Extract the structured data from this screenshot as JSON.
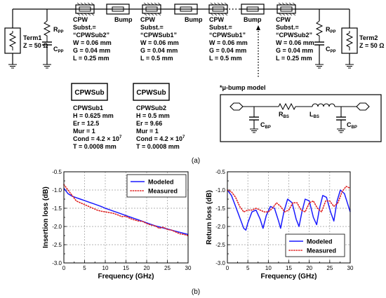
{
  "schematic": {
    "term1": {
      "name": "Term1",
      "z": "Z = 50 Ω"
    },
    "term2": {
      "name": "Term2",
      "z": "Z = 50 Ω"
    },
    "rpp": {
      "main": "R",
      "sub": "PP"
    },
    "cpp": {
      "main": "C",
      "sub": "PP"
    },
    "cpw_label": "CPW",
    "bump_label": "Bump",
    "cpw_blocks": [
      {
        "line1": "Subst.=",
        "line2": "“CPWSub2”",
        "line3": "W = 0.06 mm",
        "line4": "G = 0.04 mm",
        "line5": "L = 0.25 mm"
      },
      {
        "line1": "Subst.=",
        "line2": "“CPWSub1”",
        "line3": "W = 0.06 mm",
        "line4": "G = 0.04 mm",
        "line5": "L = 0.5 mm"
      },
      {
        "line1": "Subst.=",
        "line2": "“CPWSub1”",
        "line3": "W = 0.06 mm",
        "line4": "G = 0.04 mm",
        "line5": "L = 0.5 mm"
      },
      {
        "line1": "Subst.=",
        "line2": "“CPWSub2”",
        "line3": "W = 0.06 mm",
        "line4": "G = 0.04 mm",
        "line5": "L = 0.25 mm"
      }
    ],
    "substrates": [
      {
        "box": "CPWSub",
        "name": "CPWSub1",
        "h": "H = 0.625 mm",
        "er": "Er = 12.5",
        "mur": "Mur = 1",
        "cond_base": "Cond = 4.2 × 10",
        "cond_exp": "7",
        "t": "T = 0.0008 mm"
      },
      {
        "box": "CPWSub",
        "name": "CPWSub2",
        "h": "H = 0.5 mm",
        "er": "Er = 9.66",
        "mur": "Mur = 1",
        "cond_base": "Cond = 4.2 × 10",
        "cond_exp": "7",
        "t": "T = 0.0008 mm"
      }
    ],
    "ubump": {
      "title": "*μ-bump model",
      "rbs": {
        "main": "R",
        "sub": "BS"
      },
      "lbs": {
        "main": "L",
        "sub": "BS"
      },
      "cbp": {
        "main": "C",
        "sub": "BP"
      }
    },
    "caption": "(a)"
  },
  "chart_data": [
    {
      "type": "line",
      "title": "",
      "xlabel": "Frequency (GHz)",
      "ylabel": "Insertion loss (dB)",
      "xlim": [
        0,
        30
      ],
      "ylim": [
        -3.0,
        -0.5
      ],
      "xticks": [
        "0",
        "5",
        "10",
        "15",
        "20",
        "25",
        "30"
      ],
      "yticks": [
        "-0.5",
        "-1.0",
        "-1.5",
        "-2.0",
        "-2.5",
        "-3.0"
      ],
      "grid": true,
      "legend": "top-right",
      "series": [
        {
          "name": "Modeled",
          "color": "#1a1aff",
          "style": "solid",
          "x": [
            0,
            1,
            2,
            3,
            4,
            5,
            6,
            7,
            8,
            9,
            10,
            11,
            12,
            13,
            14,
            15,
            16,
            17,
            18,
            19,
            20,
            21,
            22,
            23,
            24,
            25,
            26,
            27,
            28,
            29,
            30
          ],
          "y": [
            -0.95,
            -1.1,
            -1.17,
            -1.21,
            -1.25,
            -1.29,
            -1.33,
            -1.37,
            -1.41,
            -1.45,
            -1.5,
            -1.54,
            -1.58,
            -1.62,
            -1.66,
            -1.7,
            -1.74,
            -1.78,
            -1.82,
            -1.86,
            -1.9,
            -1.94,
            -1.98,
            -2.01,
            -2.04,
            -2.07,
            -2.1,
            -2.13,
            -2.16,
            -2.19,
            -2.22
          ]
        },
        {
          "name": "Measured",
          "color": "#e02020",
          "style": "dotted",
          "x": [
            0,
            1,
            2,
            3,
            4,
            5,
            6,
            7,
            8,
            9,
            10,
            11,
            12,
            13,
            14,
            15,
            16,
            17,
            18,
            19,
            20,
            21,
            22,
            23,
            24,
            25,
            26,
            27,
            28,
            29,
            30
          ],
          "y": [
            -0.85,
            -1.0,
            -1.15,
            -1.3,
            -1.35,
            -1.4,
            -1.45,
            -1.5,
            -1.55,
            -1.58,
            -1.6,
            -1.62,
            -1.64,
            -1.68,
            -1.73,
            -1.72,
            -1.78,
            -1.82,
            -1.85,
            -1.86,
            -1.92,
            -1.96,
            -1.98,
            -2.05,
            -2.02,
            -2.08,
            -2.1,
            -2.15,
            -2.2,
            -2.22,
            -2.25
          ]
        }
      ]
    },
    {
      "type": "line",
      "title": "",
      "xlabel": "Frequency (GHz)",
      "ylabel": "Return loss (dB)",
      "xlim": [
        0,
        30
      ],
      "ylim": [
        -3.0,
        -0.5
      ],
      "xticks": [
        "0",
        "5",
        "10",
        "15",
        "20",
        "25",
        "30"
      ],
      "yticks": [
        "-0.5",
        "-1.0",
        "-1.5",
        "-2.0",
        "-2.5",
        "-3.0"
      ],
      "grid": true,
      "legend": "bottom-right",
      "series": [
        {
          "name": "Modeled",
          "color": "#1a1aff",
          "style": "solid",
          "x": [
            0,
            1,
            2,
            3,
            4,
            4.5,
            5,
            6,
            7,
            8,
            8.7,
            9.5,
            10.5,
            11.5,
            12.5,
            13,
            13.8,
            14.7,
            15.8,
            16.8,
            17.5,
            18.2,
            19,
            20,
            21,
            21.8,
            22.5,
            23.3,
            24.2,
            25.2,
            26,
            26.8,
            27.6,
            28.6,
            29.3,
            30
          ],
          "y": [
            -1.0,
            -1.15,
            -1.45,
            -1.75,
            -2.05,
            -2.1,
            -1.9,
            -1.6,
            -1.55,
            -1.8,
            -2.05,
            -1.7,
            -1.45,
            -1.5,
            -1.85,
            -2.05,
            -1.6,
            -1.25,
            -1.35,
            -1.8,
            -2.0,
            -1.6,
            -1.25,
            -1.3,
            -1.75,
            -1.95,
            -1.5,
            -1.15,
            -1.2,
            -1.6,
            -1.85,
            -1.3,
            -1.0,
            -1.1,
            -1.35,
            -1.6
          ]
        },
        {
          "name": "Measured",
          "color": "#e02020",
          "style": "dotted",
          "x": [
            0,
            1,
            2,
            3,
            4,
            5,
            6,
            7,
            8,
            9,
            10,
            11,
            12,
            13,
            14,
            15,
            16,
            17,
            18,
            19,
            20,
            21,
            22,
            23,
            24,
            25,
            26,
            27,
            28,
            29,
            30
          ],
          "y": [
            -1.0,
            -1.05,
            -1.2,
            -1.45,
            -1.6,
            -1.55,
            -1.55,
            -1.5,
            -1.55,
            -1.6,
            -1.6,
            -1.5,
            -1.35,
            -1.45,
            -1.6,
            -1.55,
            -1.35,
            -1.35,
            -1.55,
            -1.6,
            -1.35,
            -1.3,
            -1.5,
            -1.6,
            -1.3,
            -1.3,
            -1.45,
            -1.35,
            -1.05,
            -0.9,
            -0.95
          ]
        }
      ]
    }
  ],
  "caption_b": "(b)"
}
